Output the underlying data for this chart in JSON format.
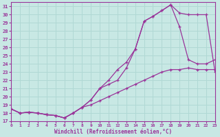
{
  "xlabel": "Windchill (Refroidissement éolien,°C)",
  "xlim": [
    0,
    23
  ],
  "ylim": [
    17,
    31.5
  ],
  "xticks": [
    0,
    1,
    2,
    3,
    4,
    5,
    6,
    7,
    8,
    9,
    10,
    11,
    12,
    13,
    14,
    15,
    16,
    17,
    18,
    19,
    20,
    21,
    22,
    23
  ],
  "yticks": [
    17,
    18,
    19,
    20,
    21,
    22,
    23,
    24,
    25,
    26,
    27,
    28,
    29,
    30,
    31
  ],
  "background_color": "#c8e8e4",
  "grid_color": "#b0d8d4",
  "line_color": "#993399",
  "line1_x": [
    0,
    1,
    2,
    3,
    4,
    5,
    6,
    7,
    8,
    9,
    10,
    11,
    12,
    13,
    14,
    15,
    16,
    17,
    18,
    19,
    20,
    21,
    22,
    23
  ],
  "line1_y": [
    18.5,
    18.0,
    18.1,
    18.0,
    17.8,
    17.7,
    17.4,
    18.0,
    18.7,
    19.6,
    21.0,
    22.0,
    23.3,
    24.2,
    25.8,
    29.2,
    29.8,
    30.5,
    31.2,
    30.2,
    30.0,
    30.0,
    30.0,
    23.0
  ],
  "line2_x": [
    0,
    1,
    2,
    3,
    4,
    5,
    6,
    7,
    8,
    9,
    10,
    11,
    12,
    13,
    14,
    15,
    16,
    17,
    18,
    19,
    20,
    21,
    22,
    23
  ],
  "line2_y": [
    18.5,
    18.0,
    18.1,
    18.0,
    17.8,
    17.7,
    17.4,
    18.0,
    18.7,
    19.6,
    21.0,
    21.5,
    22.0,
    23.5,
    25.8,
    29.2,
    29.8,
    30.5,
    31.2,
    28.5,
    24.5,
    24.0,
    24.0,
    24.5
  ],
  "line3_x": [
    0,
    1,
    2,
    3,
    4,
    5,
    6,
    7,
    8,
    9,
    10,
    11,
    12,
    13,
    14,
    15,
    16,
    17,
    18,
    19,
    20,
    21,
    22,
    23
  ],
  "line3_y": [
    18.5,
    18.0,
    18.1,
    18.0,
    17.8,
    17.7,
    17.4,
    18.0,
    18.7,
    19.0,
    19.5,
    20.0,
    20.5,
    21.0,
    21.5,
    22.0,
    22.5,
    23.0,
    23.3,
    23.3,
    23.5,
    23.3,
    23.3,
    23.3
  ]
}
